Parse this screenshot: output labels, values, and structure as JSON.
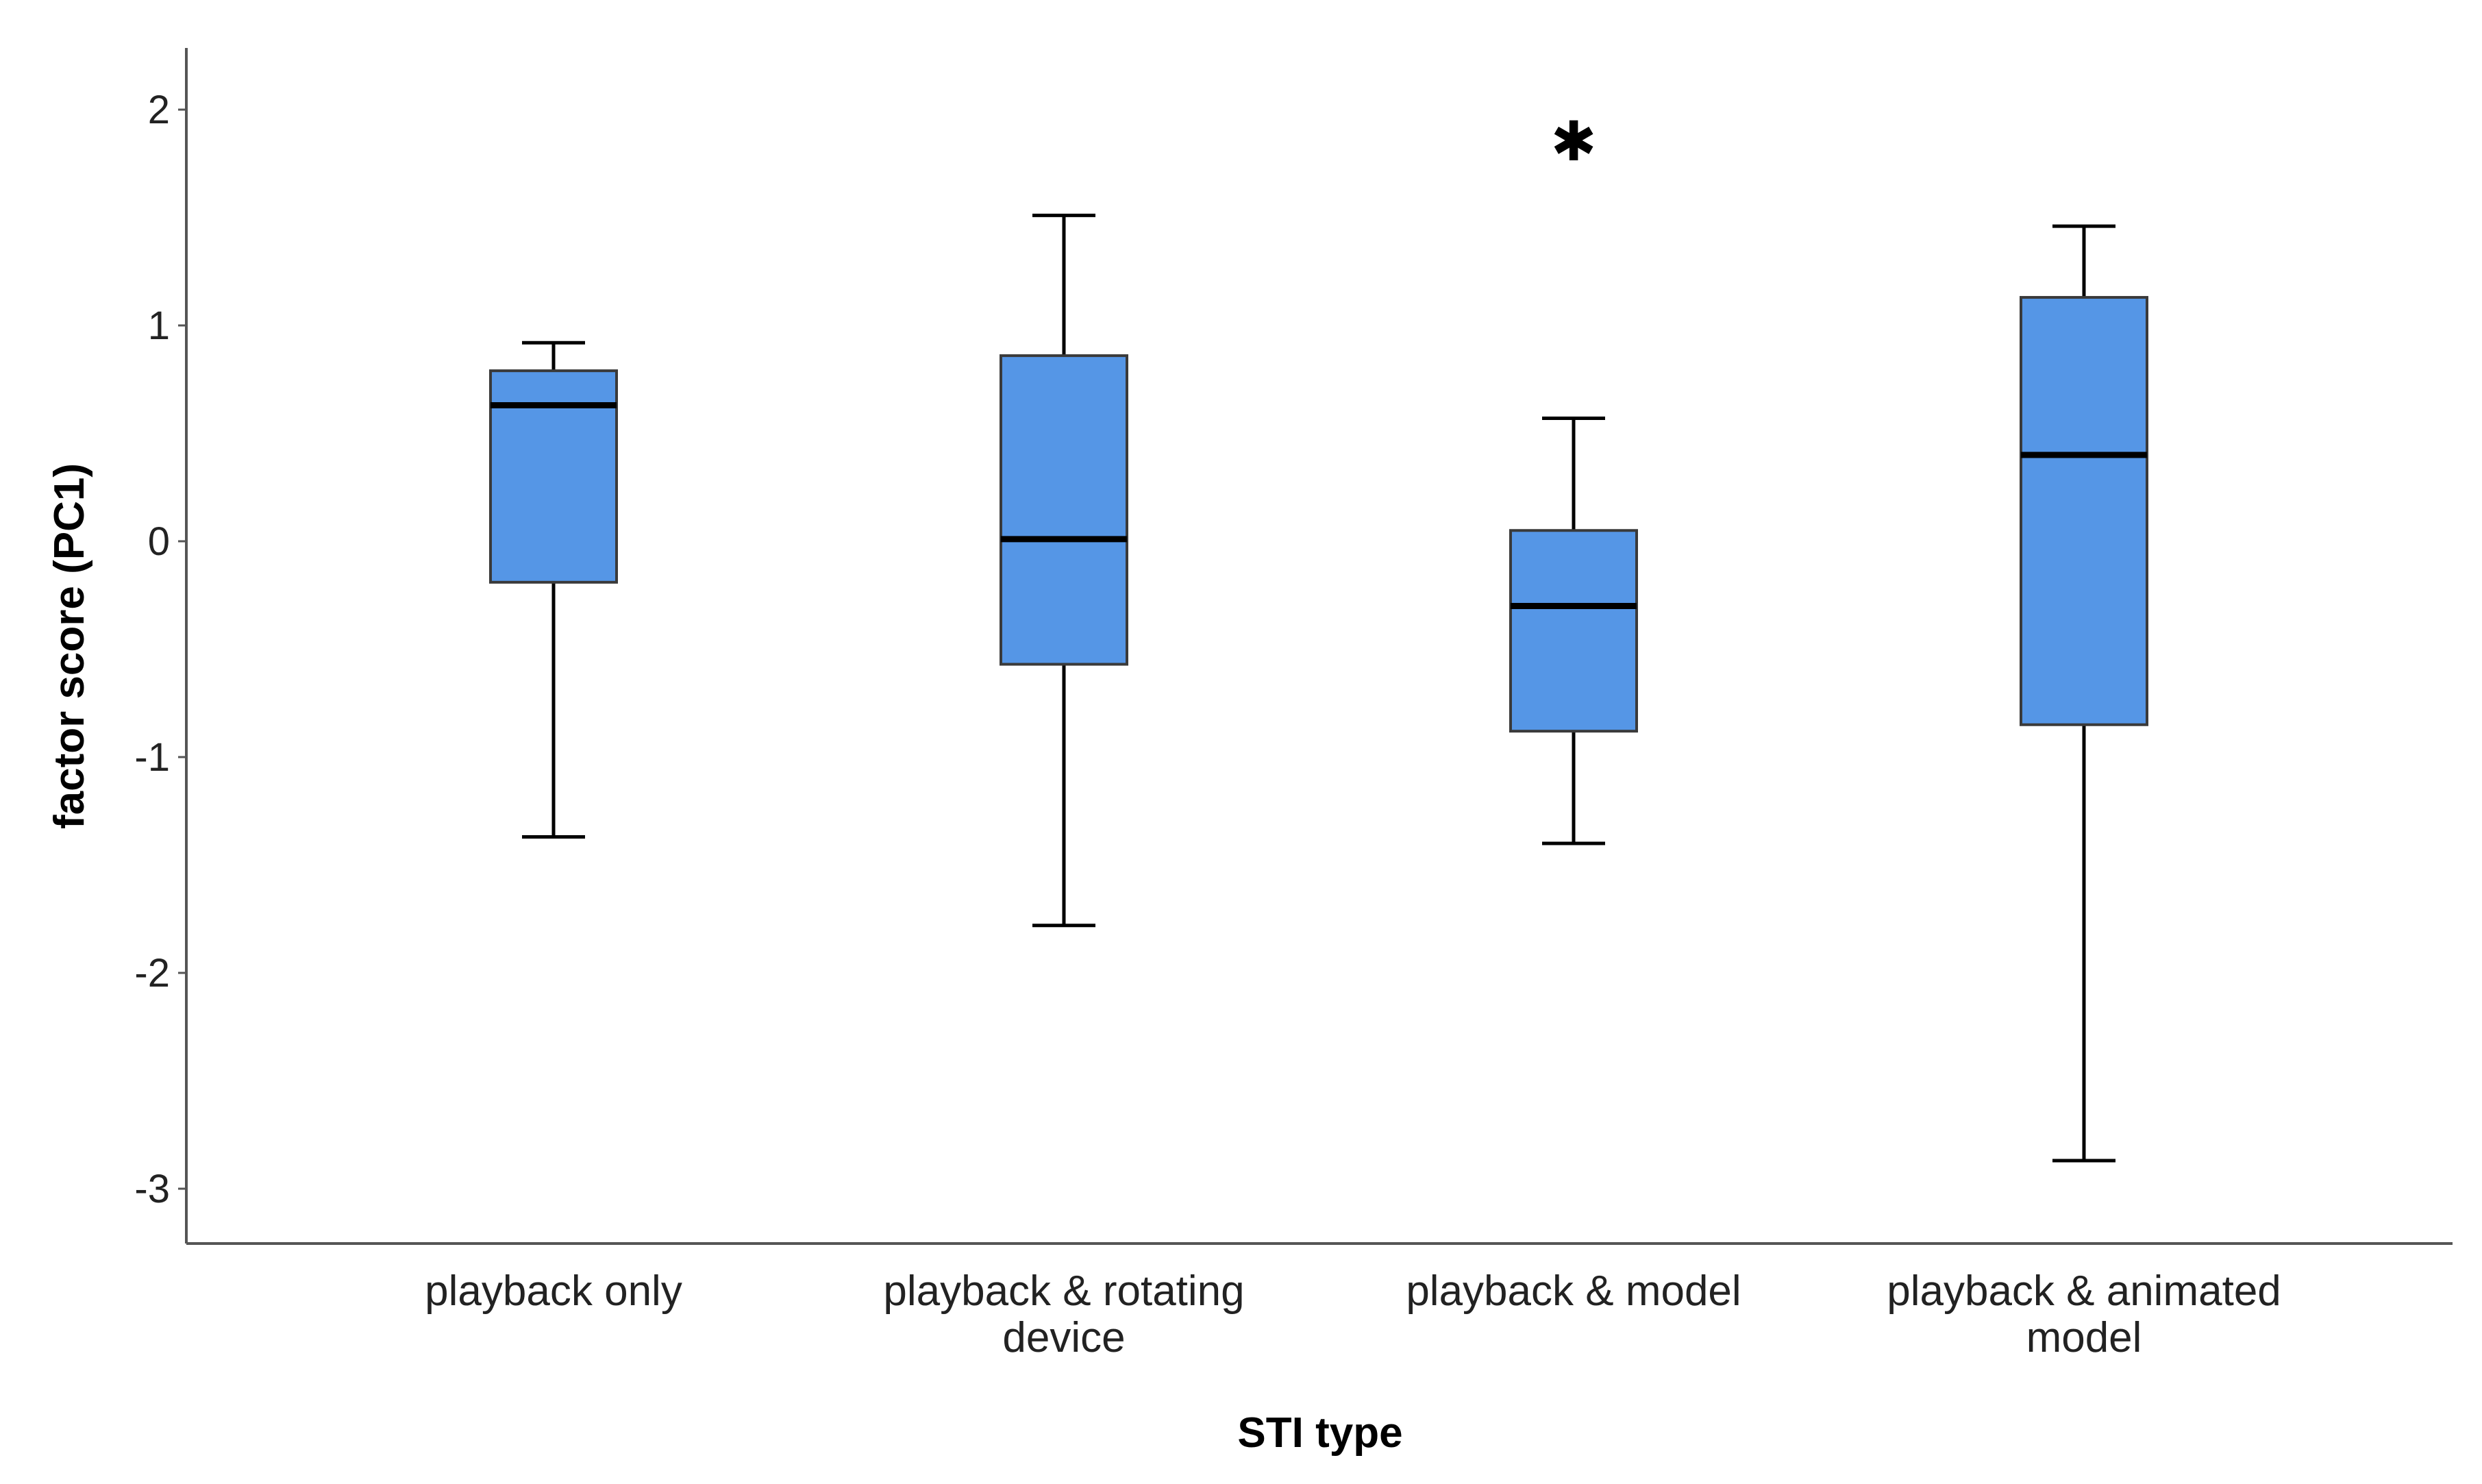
{
  "chart_data": {
    "type": "boxplot",
    "title": "",
    "xlabel": "STI type",
    "ylabel": "factor score (PC1)",
    "ylim": [
      -3.25,
      2.3
    ],
    "yticks": [
      2,
      1,
      0,
      -1,
      -2,
      -3
    ],
    "box_color": "#5596E6",
    "categories": [
      [
        "playback only"
      ],
      [
        "playback & rotating",
        "device"
      ],
      [
        "playback & model"
      ],
      [
        "playback & animated",
        "model"
      ]
    ],
    "boxes": [
      {
        "whisker_low": -1.37,
        "q1": -0.19,
        "median": 0.63,
        "q3": 0.79,
        "whisker_high": 0.92,
        "outliers": []
      },
      {
        "whisker_low": -1.78,
        "q1": -0.57,
        "median": 0.01,
        "q3": 0.86,
        "whisker_high": 1.51,
        "outliers": []
      },
      {
        "whisker_low": -1.4,
        "q1": -0.88,
        "median": -0.3,
        "q3": 0.05,
        "whisker_high": 0.57,
        "outliers": [
          1.86
        ]
      },
      {
        "whisker_low": -2.87,
        "q1": -0.85,
        "median": 0.4,
        "q3": 1.13,
        "whisker_high": 1.46,
        "outliers": []
      }
    ]
  }
}
